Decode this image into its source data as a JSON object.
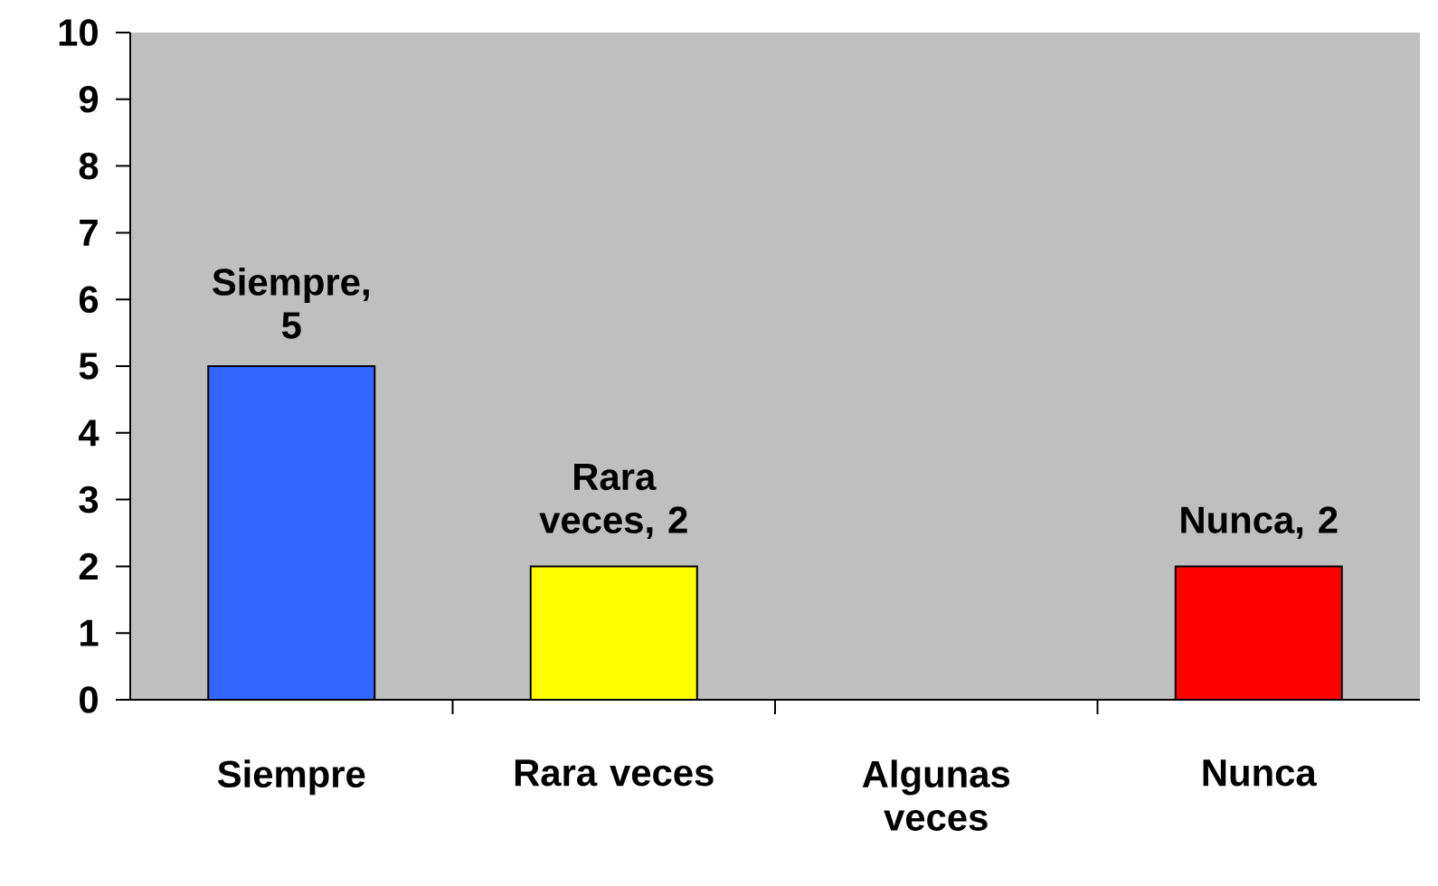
{
  "chart_data": {
    "type": "bar",
    "categories": [
      "Siempre",
      "Rara veces",
      "Algunas veces",
      "Nunca"
    ],
    "values": [
      5,
      2,
      0,
      2
    ],
    "colors": [
      "#3366ff",
      "#ffff00",
      "#c0c0c0",
      "#ff0000"
    ],
    "value_labels": [
      "Siempre, 5",
      "Rara veces, 2",
      null,
      "Nunca, 2"
    ],
    "ylim": [
      0,
      10
    ],
    "yticks": [
      0,
      1,
      2,
      3,
      4,
      5,
      6,
      7,
      8,
      9,
      10
    ],
    "grid": false
  }
}
